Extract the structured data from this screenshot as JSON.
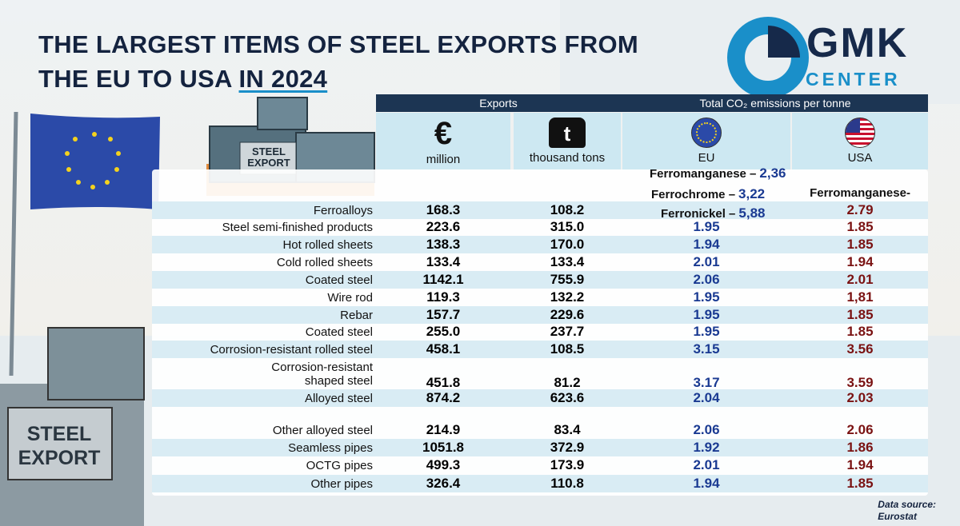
{
  "header": {
    "title_lines": [
      "THE LARGEST ITEMS OF STEEL EXPORTS FROM",
      "THE EU TO USA"
    ],
    "title_highlight": "IN 2024"
  },
  "logo": {
    "top": "GMK",
    "bottom": "CENTER"
  },
  "illustration": {
    "crate_label": "STEEL EXPORT"
  },
  "table": {
    "group_headers": [
      "Exports",
      "Total CO₂ emissions per tonne"
    ],
    "columns": [
      {
        "icon": "€",
        "label": "million"
      },
      {
        "icon": "t",
        "label": "thousand tons"
      },
      {
        "label": "EU"
      },
      {
        "label": "USA"
      }
    ],
    "rows": [
      {
        "label": "Ferroalloys",
        "eur_million": "168.3",
        "thousand_tons": "108.2",
        "co2_eu_notes": [
          {
            "label": "Ferromanganese –",
            "value": "2,36"
          },
          {
            "label": "Ferrochrome –",
            "value": "3,22"
          },
          {
            "label": "Ferronickel –",
            "value": "5,88"
          }
        ],
        "co2_usa_note": "Ferromanganese-",
        "co2_usa": "2.79"
      },
      {
        "label": "Steel semi-finished products",
        "eur_million": "223.6",
        "thousand_tons": "315.0",
        "co2_eu": "1.95",
        "co2_usa": "1.85"
      },
      {
        "label": "Hot rolled sheets",
        "eur_million": "138.3",
        "thousand_tons": "170.0",
        "co2_eu": "1.94",
        "co2_usa": "1.85"
      },
      {
        "label": "Cold rolled sheets",
        "eur_million": "133.4",
        "thousand_tons": "133.4",
        "co2_eu": "2.01",
        "co2_usa": "1.94"
      },
      {
        "label": "Coated steel",
        "eur_million": "1142.1",
        "thousand_tons": "755.9",
        "co2_eu": "2.06",
        "co2_usa": "2.01"
      },
      {
        "label": "Wire rod",
        "eur_million": "119.3",
        "thousand_tons": "132.2",
        "co2_eu": "1.95",
        "co2_usa": "1,81"
      },
      {
        "label": "Rebar",
        "eur_million": "157.7",
        "thousand_tons": "229.6",
        "co2_eu": "1.95",
        "co2_usa": "1.85"
      },
      {
        "label": "Coated steel",
        "eur_million": "255.0",
        "thousand_tons": "237.7",
        "co2_eu": "1.95",
        "co2_usa": "1.85"
      },
      {
        "label": "Corrosion-resistant rolled steel",
        "eur_million": "458.1",
        "thousand_tons": "108.5",
        "co2_eu": "3.15",
        "co2_usa": "3.56"
      },
      {
        "label": "Corrosion-resistant shaped steel",
        "eur_million": "451.8",
        "thousand_tons": "81.2",
        "co2_eu": "3.17",
        "co2_usa": "3.59"
      },
      {
        "label": "Alloyed steel",
        "eur_million": "874.2",
        "thousand_tons": "623.6",
        "co2_eu": "2.04",
        "co2_usa": "2.03"
      },
      {
        "label": "Other alloyed steel",
        "eur_million": "214.9",
        "thousand_tons": "83.4",
        "co2_eu": "2.06",
        "co2_usa": "2.06"
      },
      {
        "label": "Seamless pipes",
        "eur_million": "1051.8",
        "thousand_tons": "372.9",
        "co2_eu": "1.92",
        "co2_usa": "1.86"
      },
      {
        "label": "OCTG pipes",
        "eur_million": "499.3",
        "thousand_tons": "173.9",
        "co2_eu": "2.01",
        "co2_usa": "1.94"
      },
      {
        "label": "Other pipes",
        "eur_million": "326.4",
        "thousand_tons": "110.8",
        "co2_eu": "1.94",
        "co2_usa": "1.85"
      }
    ]
  },
  "footer": {
    "source_label": "Data source:",
    "source": "Eurostat"
  }
}
